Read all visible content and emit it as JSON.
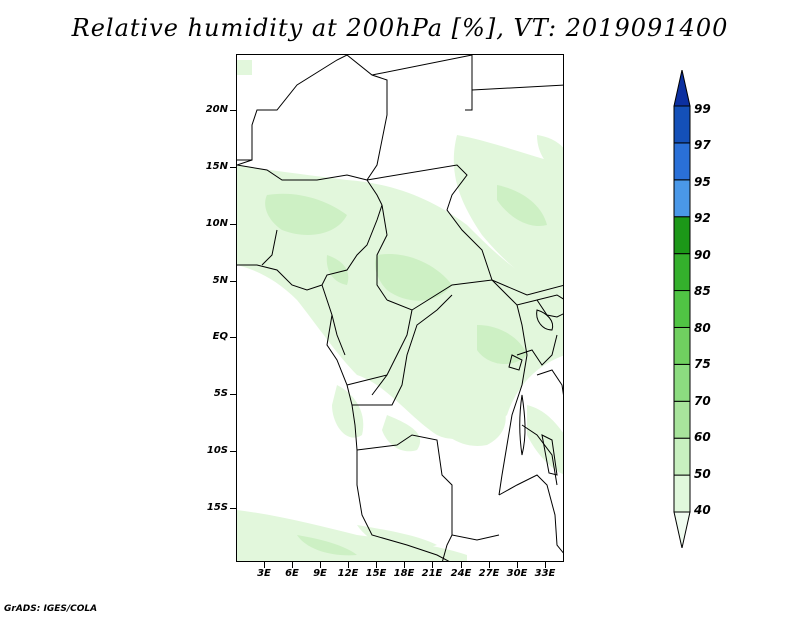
{
  "title": "Relative humidity at 200hPa [%], VT: 2019091400",
  "credit": "GrADS: IGES/COLA",
  "lat_labels": [
    "20N",
    "15N",
    "10N",
    "5N",
    "EQ",
    "5S",
    "10S",
    "15S"
  ],
  "lon_labels": [
    "3E",
    "6E",
    "9E",
    "12E",
    "15E",
    "18E",
    "21E",
    "24E",
    "27E",
    "30E",
    "33E"
  ],
  "colorbar": {
    "levels": [
      "40",
      "50",
      "60",
      "70",
      "75",
      "80",
      "85",
      "90",
      "92",
      "95",
      "97",
      "99"
    ],
    "colors": [
      "#f0fcf0",
      "#e0f8dc",
      "#c8f0c0",
      "#a8e49c",
      "#8cdc80",
      "#70d060",
      "#50c444",
      "#34b02c",
      "#1c9818",
      "#4a98e8",
      "#2a70d8",
      "#1450b8",
      "#0c30a0"
    ]
  },
  "icons": {
    "triangle_top": "colorbar-max-triangle",
    "triangle_bottom": "colorbar-min-triangle"
  }
}
